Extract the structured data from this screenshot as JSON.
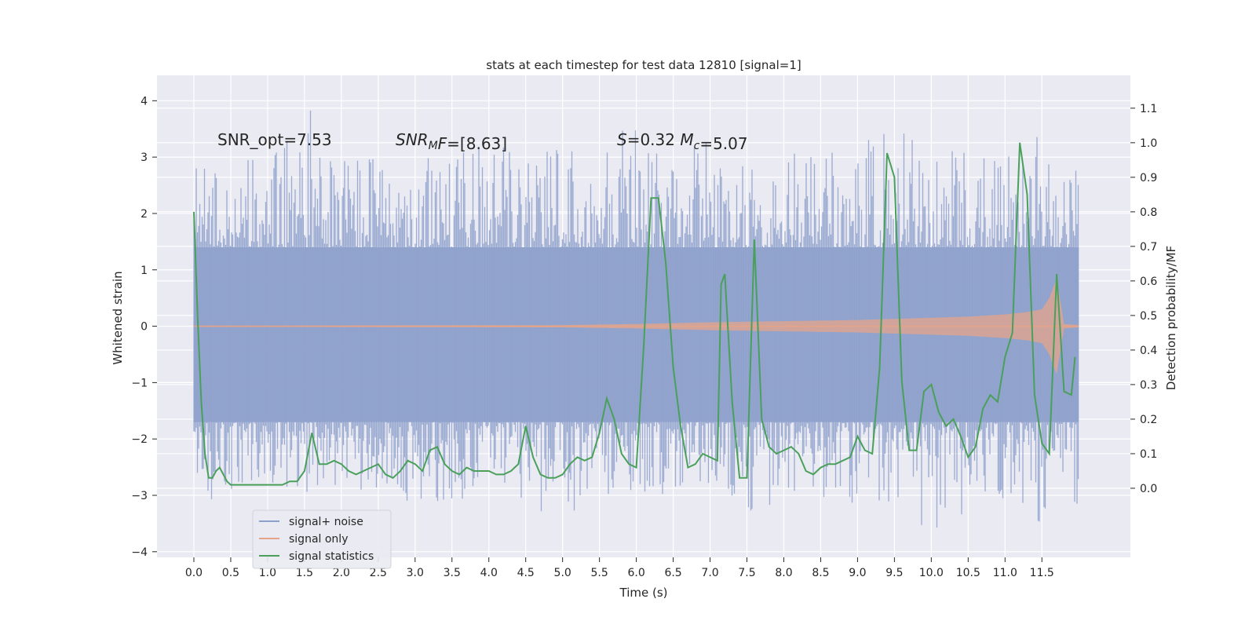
{
  "chart_data": {
    "type": "line",
    "title": "stats at each timestep for test data 12810 [signal=1]",
    "xlabel": "Time (s)",
    "ylabel": "Whitened strain",
    "ylabel_right": "Detection probability/MF",
    "xlim": [
      -0.5,
      12.7
    ],
    "ylim": [
      -4.1,
      4.45
    ],
    "ylim_right": [
      -0.2,
      1.195
    ],
    "x_ticks": [
      0.0,
      0.5,
      1.0,
      1.5,
      2.0,
      2.5,
      3.0,
      3.5,
      4.0,
      4.5,
      5.0,
      5.5,
      6.0,
      6.5,
      7.0,
      7.5,
      8.0,
      8.5,
      9.0,
      9.5,
      10.0,
      10.5,
      11.0,
      11.5
    ],
    "x_tick_labels": [
      "0.0",
      "0.5",
      "1.0",
      "1.5",
      "2.0",
      "2.5",
      "3.0",
      "3.5",
      "4.0",
      "4.5",
      "5.0",
      "5.5",
      "6.0",
      "6.5",
      "7.0",
      "7.5",
      "8.0",
      "8.5",
      "9.0",
      "9.5",
      "10.0",
      "10.5",
      "11.0",
      "11.5"
    ],
    "y_ticks": [
      -4,
      -3,
      -2,
      -1,
      0,
      1,
      2,
      3,
      4
    ],
    "y_tick_labels": [
      "−4",
      "−3",
      "−2",
      "−1",
      "0",
      "1",
      "2",
      "3",
      "4"
    ],
    "y_ticks_right": [
      0.0,
      0.1,
      0.2,
      0.3,
      0.4,
      0.5,
      0.6,
      0.7,
      0.8,
      0.9,
      1.0,
      1.1
    ],
    "y_tick_labels_right": [
      "0.0",
      "0.1",
      "0.2",
      "0.3",
      "0.4",
      "0.5",
      "0.6",
      "0.7",
      "0.8",
      "0.9",
      "1.0",
      "1.1"
    ],
    "annotations": [
      {
        "parts": [
          {
            "text": "SNR_opt=7.53",
            "italic": false
          }
        ]
      },
      {
        "parts": [
          {
            "text": "SNR",
            "italic": true
          },
          {
            "text": "M",
            "italic": true,
            "sub": true
          },
          {
            "text": "F",
            "italic": true
          },
          {
            "text": "=[8.63]",
            "italic": false
          }
        ]
      },
      {
        "parts": [
          {
            "text": "S",
            "italic": true
          },
          {
            "text": "=0.32   ",
            "italic": false
          },
          {
            "text": "M",
            "italic": true
          },
          {
            "text": "c",
            "italic": true,
            "sub": true
          },
          {
            "text": "=5.07",
            "italic": false
          }
        ]
      }
    ],
    "grid": true,
    "legend_position": "lower-left",
    "background": "#eaeaf2",
    "series": [
      {
        "name": "signal+ noise",
        "color": "#8da0cb",
        "x_range": [
          0.0,
          12.0
        ],
        "envelope": {
          "x": [
            0.0,
            0.5,
            1.0,
            1.5,
            2.0,
            2.5,
            3.0,
            3.5,
            4.0,
            4.5,
            5.0,
            5.5,
            6.0,
            6.5,
            7.0,
            7.5,
            8.0,
            8.5,
            9.0,
            9.5,
            10.0,
            10.5,
            11.0,
            11.5,
            12.0
          ],
          "y_min": [
            -3.1,
            -3.1,
            -2.8,
            -3.0,
            -3.0,
            -3.0,
            -3.2,
            -3.1,
            -3.0,
            -3.3,
            -3.5,
            -3.0,
            -3.0,
            -3.0,
            -3.0,
            -3.3,
            -3.1,
            -3.1,
            -3.2,
            -3.1,
            -3.7,
            -3.3,
            -3.1,
            -3.5,
            -3.3
          ],
          "y_max": [
            2.9,
            2.9,
            3.0,
            4.1,
            3.0,
            3.0,
            3.0,
            3.1,
            3.3,
            3.0,
            3.2,
            3.1,
            3.9,
            3.1,
            3.3,
            3.1,
            3.1,
            3.0,
            3.3,
            3.7,
            3.2,
            3.2,
            3.1,
            3.4,
            3.0
          ],
          "core": [
            1.4,
            -1.7
          ]
        }
      },
      {
        "name": "signal only",
        "color": "#e5a48a",
        "x_range": [
          0.0,
          12.0
        ],
        "amplitude": {
          "x": [
            0.0,
            5.0,
            6.0,
            7.0,
            8.0,
            9.0,
            10.0,
            10.5,
            11.0,
            11.3,
            11.5,
            11.6,
            11.7,
            11.8,
            12.0
          ],
          "y": [
            0.01,
            0.02,
            0.04,
            0.07,
            0.09,
            0.11,
            0.15,
            0.17,
            0.21,
            0.25,
            0.3,
            0.5,
            0.85,
            0.04,
            0.02
          ]
        }
      },
      {
        "name": "signal statistics",
        "color": "#4aa05b",
        "x": [
          0.0,
          0.05,
          0.1,
          0.15,
          0.2,
          0.25,
          0.3,
          0.35,
          0.4,
          0.45,
          0.5,
          0.6,
          0.7,
          0.8,
          0.9,
          1.0,
          1.1,
          1.2,
          1.3,
          1.4,
          1.5,
          1.6,
          1.7,
          1.8,
          1.9,
          2.0,
          2.1,
          2.2,
          2.3,
          2.4,
          2.5,
          2.6,
          2.7,
          2.8,
          2.9,
          3.0,
          3.1,
          3.2,
          3.3,
          3.4,
          3.5,
          3.6,
          3.7,
          3.8,
          3.9,
          4.0,
          4.1,
          4.2,
          4.3,
          4.4,
          4.5,
          4.6,
          4.7,
          4.8,
          4.9,
          5.0,
          5.1,
          5.2,
          5.3,
          5.4,
          5.5,
          5.6,
          5.7,
          5.8,
          5.9,
          6.0,
          6.1,
          6.2,
          6.3,
          6.4,
          6.5,
          6.6,
          6.7,
          6.8,
          6.9,
          7.0,
          7.1,
          7.15,
          7.2,
          7.3,
          7.4,
          7.5,
          7.6,
          7.7,
          7.8,
          7.9,
          8.0,
          8.1,
          8.2,
          8.3,
          8.4,
          8.5,
          8.6,
          8.7,
          8.8,
          8.9,
          9.0,
          9.1,
          9.2,
          9.3,
          9.4,
          9.5,
          9.6,
          9.7,
          9.8,
          9.9,
          10.0,
          10.1,
          10.2,
          10.3,
          10.4,
          10.5,
          10.6,
          10.7,
          10.8,
          10.9,
          11.0,
          11.1,
          11.2,
          11.3,
          11.4,
          11.5,
          11.6,
          11.7,
          11.8,
          11.9,
          11.95
        ],
        "y": [
          0.8,
          0.5,
          0.25,
          0.1,
          0.03,
          0.03,
          0.05,
          0.06,
          0.04,
          0.02,
          0.01,
          0.01,
          0.01,
          0.01,
          0.01,
          0.01,
          0.01,
          0.01,
          0.02,
          0.02,
          0.05,
          0.16,
          0.07,
          0.07,
          0.08,
          0.07,
          0.05,
          0.04,
          0.05,
          0.06,
          0.07,
          0.04,
          0.03,
          0.05,
          0.08,
          0.07,
          0.05,
          0.11,
          0.12,
          0.07,
          0.05,
          0.04,
          0.06,
          0.05,
          0.05,
          0.05,
          0.04,
          0.04,
          0.05,
          0.07,
          0.18,
          0.09,
          0.04,
          0.03,
          0.03,
          0.04,
          0.07,
          0.09,
          0.08,
          0.09,
          0.16,
          0.26,
          0.2,
          0.1,
          0.07,
          0.06,
          0.41,
          0.84,
          0.84,
          0.65,
          0.35,
          0.18,
          0.06,
          0.07,
          0.1,
          0.09,
          0.08,
          0.59,
          0.62,
          0.25,
          0.03,
          0.03,
          0.72,
          0.2,
          0.12,
          0.1,
          0.11,
          0.12,
          0.1,
          0.05,
          0.04,
          0.06,
          0.07,
          0.07,
          0.08,
          0.09,
          0.15,
          0.11,
          0.1,
          0.35,
          0.97,
          0.9,
          0.31,
          0.11,
          0.11,
          0.28,
          0.3,
          0.22,
          0.18,
          0.2,
          0.15,
          0.09,
          0.12,
          0.23,
          0.27,
          0.25,
          0.38,
          0.45,
          1.0,
          0.85,
          0.27,
          0.13,
          0.1,
          0.62,
          0.28,
          0.27,
          0.38
        ]
      }
    ]
  }
}
